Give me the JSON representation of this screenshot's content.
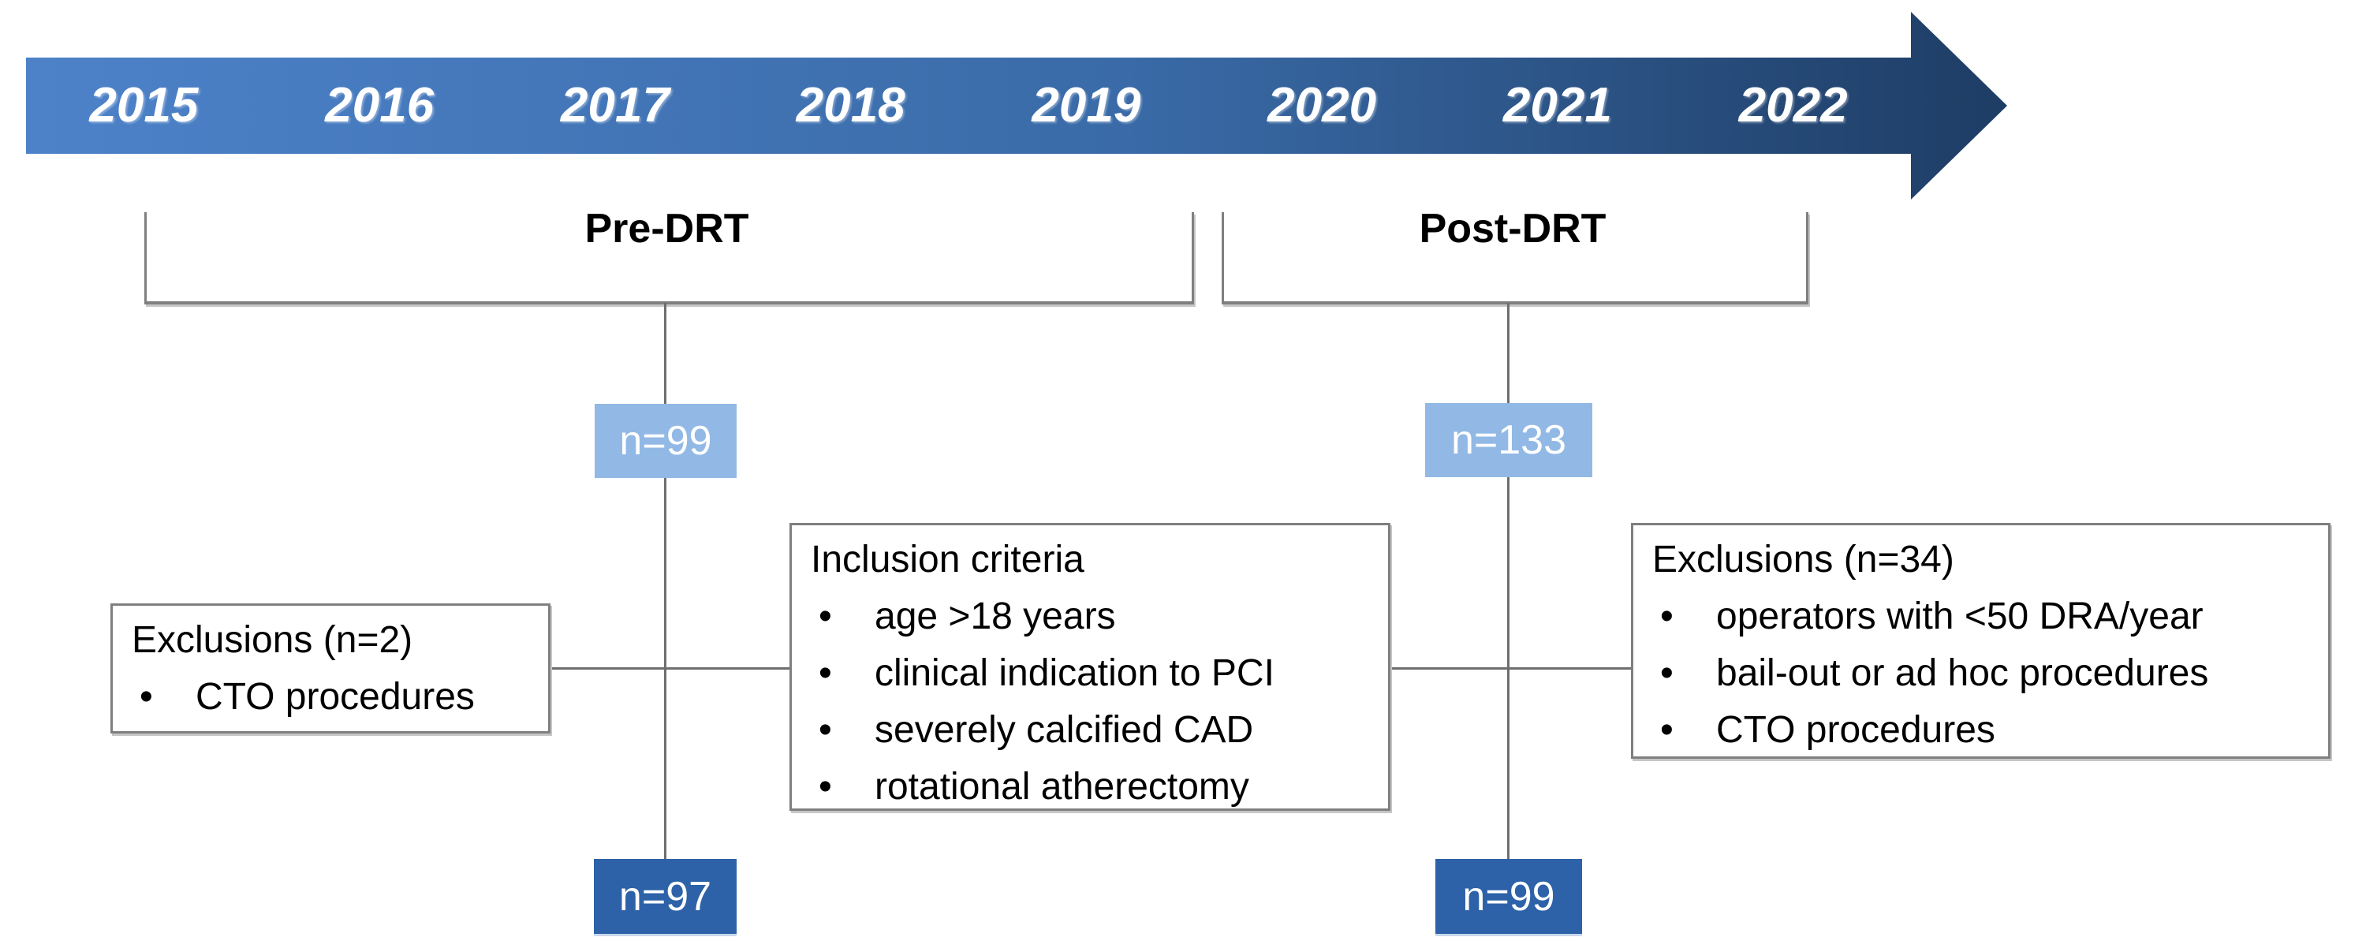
{
  "timeline": {
    "years": [
      "2015",
      "2016",
      "2017",
      "2018",
      "2019",
      "2020",
      "2021",
      "2022"
    ]
  },
  "periods": {
    "pre": {
      "label": "Pre-DRT",
      "initial_n": "n=99",
      "final_n": "n=97"
    },
    "post": {
      "label": "Post-DRT",
      "initial_n": "n=133",
      "final_n": "n=99"
    }
  },
  "inclusion": {
    "title": "Inclusion criteria",
    "items": [
      "age >18 years",
      "clinical indication to PCI",
      "severely calcified CAD",
      "rotational atherectomy"
    ]
  },
  "exclusions_pre": {
    "title": "Exclusions (n=2)",
    "items": [
      "CTO procedures"
    ]
  },
  "exclusions_post": {
    "title": "Exclusions (n=34)",
    "items": [
      "operators with <50 DRA/year",
      "bail-out or ad hoc procedures",
      "CTO procedures"
    ]
  },
  "colors": {
    "arrow_gradient_start": "#4d82c9",
    "arrow_gradient_end": "#1e3d65",
    "light_n_box": "#92b9e5",
    "dark_n_box": "#2d62a8",
    "connector_gray": "#6e6e6e",
    "border_gray": "#7f7f7f",
    "year_text": "#ffffff"
  }
}
